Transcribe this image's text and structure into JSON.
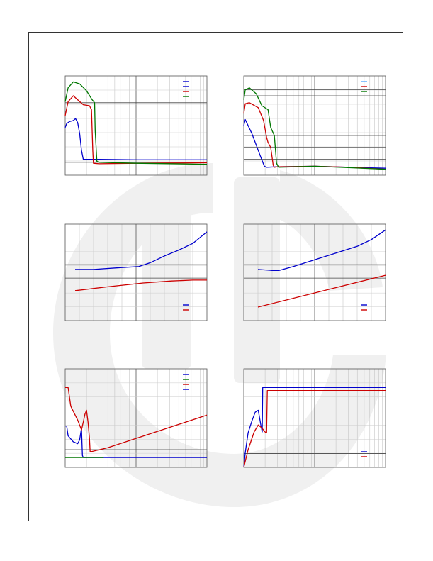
{
  "page": {
    "background": "#ffffff",
    "frame_color": "#333333",
    "watermark_color": "#f0f0f0"
  },
  "chart_data": [
    {
      "type": "line",
      "panel": "top-left",
      "xscale": "log",
      "xlim": [
        1,
        100
      ],
      "ylim": [
        0,
        1
      ],
      "legend_position": "top-right",
      "grid_major_y": [
        0.13,
        0.73
      ],
      "series": [
        {
          "color": "#0000cc",
          "x": [
            1,
            1.05,
            1.15,
            1.3,
            1.4,
            1.5,
            1.6,
            1.7,
            1.8,
            2.0,
            3,
            10,
            30,
            100
          ],
          "y": [
            0.48,
            0.52,
            0.54,
            0.55,
            0.57,
            0.53,
            0.42,
            0.25,
            0.16,
            0.16,
            0.16,
            0.155,
            0.155,
            0.155
          ]
        },
        {
          "color": "#cc0000",
          "x": [
            1,
            1.1,
            1.3,
            1.5,
            1.8,
            2.2,
            2.35,
            2.45,
            2.5,
            3,
            10,
            100
          ],
          "y": [
            0.6,
            0.74,
            0.8,
            0.76,
            0.71,
            0.7,
            0.66,
            0.25,
            0.12,
            0.115,
            0.12,
            0.125
          ]
        },
        {
          "color": "#007700",
          "x": [
            1,
            1.1,
            1.3,
            1.6,
            2.0,
            2.4,
            2.6,
            2.65,
            2.8,
            3,
            10,
            100
          ],
          "y": [
            0.74,
            0.88,
            0.94,
            0.92,
            0.85,
            0.76,
            0.73,
            0.45,
            0.14,
            0.13,
            0.12,
            0.11
          ]
        }
      ],
      "legend": [
        {
          "color": "#0000cc"
        },
        {
          "color": "#0000cc"
        },
        {
          "color": "#cc0000"
        },
        {
          "color": "#007700"
        }
      ]
    },
    {
      "type": "line",
      "panel": "top-right",
      "xscale": "log",
      "xlim": [
        1,
        100
      ],
      "ylim": [
        0,
        1
      ],
      "legend_position": "top-right",
      "grid_major_y": [
        0.16,
        0.28,
        0.4,
        0.8,
        0.86
      ],
      "series": [
        {
          "color": "#0000cc",
          "x": [
            1,
            1.05,
            1.3,
            1.7,
            1.95,
            2.1,
            3,
            10,
            30,
            100
          ],
          "y": [
            0.5,
            0.56,
            0.42,
            0.2,
            0.09,
            0.08,
            0.085,
            0.09,
            0.08,
            0.07
          ]
        },
        {
          "color": "#cc0000",
          "x": [
            1,
            1.05,
            1.2,
            1.6,
            1.9,
            2.1,
            2.2,
            2.4,
            2.6,
            2.7,
            3,
            10,
            30,
            100
          ],
          "y": [
            0.62,
            0.72,
            0.73,
            0.68,
            0.55,
            0.38,
            0.33,
            0.28,
            0.1,
            0.08,
            0.085,
            0.09,
            0.08,
            0.06
          ]
        },
        {
          "color": "#007700",
          "x": [
            1,
            1.05,
            1.2,
            1.5,
            1.8,
            2.2,
            2.4,
            2.7,
            2.9,
            3.1,
            10,
            100
          ],
          "y": [
            0.76,
            0.86,
            0.88,
            0.82,
            0.7,
            0.66,
            0.48,
            0.4,
            0.12,
            0.08,
            0.09,
            0.06
          ]
        }
      ],
      "legend": [
        {
          "color": "#55aaff"
        },
        {
          "color": "#cc0000"
        },
        {
          "color": "#007700"
        }
      ]
    },
    {
      "type": "line",
      "panel": "middle-left",
      "xscale": "linear",
      "xlim": [
        0,
        100
      ],
      "ylim": [
        0,
        1
      ],
      "legend_position": "bottom-right",
      "grid_major_y": [
        0.44,
        0.58
      ],
      "series": [
        {
          "color": "#0000cc",
          "x": [
            7,
            20,
            40,
            52,
            60,
            70,
            80,
            90,
            100
          ],
          "y": [
            0.53,
            0.53,
            0.55,
            0.56,
            0.6,
            0.67,
            0.73,
            0.8,
            0.92
          ]
        },
        {
          "color": "#cc0000",
          "x": [
            7,
            30,
            55,
            75,
            90,
            100
          ],
          "y": [
            0.31,
            0.35,
            0.39,
            0.41,
            0.42,
            0.42
          ]
        }
      ],
      "legend": [
        {
          "color": "#0000cc"
        },
        {
          "color": "#cc0000"
        }
      ]
    },
    {
      "type": "line",
      "panel": "middle-right",
      "xscale": "linear",
      "xlim": [
        0,
        100
      ],
      "ylim": [
        0,
        1
      ],
      "legend_position": "bottom-right",
      "grid_major_y": [
        0.44,
        0.58
      ],
      "series": [
        {
          "color": "#0000cc",
          "x": [
            10,
            20,
            25,
            35,
            50,
            65,
            80,
            90,
            100
          ],
          "y": [
            0.53,
            0.52,
            0.52,
            0.56,
            0.63,
            0.7,
            0.77,
            0.84,
            0.94
          ]
        },
        {
          "color": "#cc0000",
          "x": [
            10,
            100
          ],
          "y": [
            0.14,
            0.47
          ]
        }
      ],
      "legend": [
        {
          "color": "#0000cc"
        },
        {
          "color": "#cc0000"
        }
      ]
    },
    {
      "type": "line",
      "panel": "bottom-left",
      "xscale": "log",
      "xlim": [
        1,
        100
      ],
      "ylim": [
        0,
        1
      ],
      "legend_position": "top-right",
      "grid_major_y": [
        0.18
      ],
      "series": [
        {
          "color": "#0000cc",
          "x": [
            1,
            1.05,
            1.1,
            1.3,
            1.5,
            1.6,
            1.7,
            1.75,
            1.8,
            1.85,
            10,
            100
          ],
          "y": [
            0.42,
            0.42,
            0.32,
            0.26,
            0.24,
            0.28,
            0.4,
            0.12,
            0.1,
            0.1,
            0.1,
            0.1
          ]
        },
        {
          "color": "#cc0000",
          "x": [
            1,
            1.1,
            1.2,
            1.5,
            1.7,
            1.8,
            1.9,
            2.0,
            2.1,
            2.2,
            2.25,
            2.35,
            4,
            100
          ],
          "y": [
            0.81,
            0.81,
            0.62,
            0.48,
            0.38,
            0.46,
            0.54,
            0.58,
            0.46,
            0.3,
            0.16,
            0.16,
            0.2,
            0.53
          ]
        },
        {
          "color": "#007700",
          "x": [
            1,
            3.5
          ],
          "y": [
            0.1,
            0.1
          ]
        }
      ],
      "legend": [
        {
          "color": "#0000cc"
        },
        {
          "color": "#007700"
        },
        {
          "color": "#cc0000"
        },
        {
          "color": "#0000cc"
        }
      ]
    },
    {
      "type": "line",
      "panel": "bottom-right",
      "xscale": "log",
      "xlim": [
        1,
        100
      ],
      "ylim": [
        0,
        1
      ],
      "legend_position": "bottom-right",
      "grid_major_y": [
        0.14
      ],
      "series": [
        {
          "color": "#0000cc",
          "x": [
            1,
            1.05,
            1.15,
            1.3,
            1.45,
            1.6,
            1.75,
            1.82,
            1.85,
            100
          ],
          "y": [
            0.0,
            0.15,
            0.35,
            0.47,
            0.56,
            0.58,
            0.42,
            0.36,
            0.81,
            0.81
          ]
        },
        {
          "color": "#cc0000",
          "x": [
            1,
            1.15,
            1.4,
            1.6,
            1.8,
            2.05,
            2.1,
            2.15,
            2.2,
            100
          ],
          "y": [
            0.0,
            0.18,
            0.36,
            0.43,
            0.4,
            0.35,
            0.35,
            0.78,
            0.78,
            0.78
          ]
        }
      ],
      "legend": [
        {
          "color": "#0000cc"
        },
        {
          "color": "#cc0000"
        }
      ]
    }
  ]
}
